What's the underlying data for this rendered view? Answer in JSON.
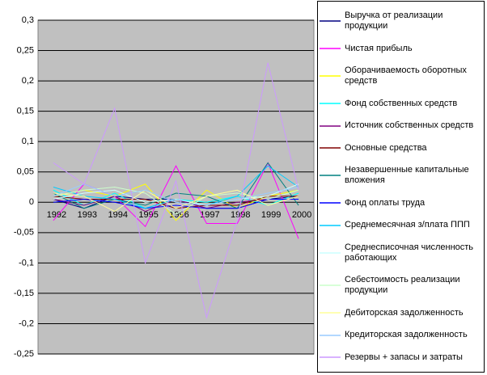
{
  "chart_data": {
    "type": "line",
    "categories": [
      "1992",
      "1993",
      "1994",
      "1995",
      "1996",
      "1997",
      "1998",
      "1999",
      "2000"
    ],
    "ylim": [
      -0.25,
      0.3
    ],
    "yticks": [
      {
        "value": -0.25,
        "label": "-0,25"
      },
      {
        "value": -0.2,
        "label": "-0,2"
      },
      {
        "value": -0.15,
        "label": "-0,15"
      },
      {
        "value": -0.1,
        "label": "-0,1"
      },
      {
        "value": -0.05,
        "label": "-0,05"
      },
      0,
      {
        "value": 0.05,
        "label": "0,05"
      },
      {
        "value": 0.1,
        "label": "0,1"
      },
      {
        "value": 0.15,
        "label": "0,15"
      },
      {
        "value": 0.2,
        "label": "0,2"
      },
      {
        "value": 0.25,
        "label": "0,25"
      },
      {
        "value": 0.3,
        "label": "0,3"
      }
    ],
    "grid": true,
    "legend": "right",
    "series": [
      {
        "name": "Выручка от реализации продукции",
        "color": "#000080",
        "values": [
          0.005,
          -0.01,
          0.01,
          0.005,
          0.005,
          -0.01,
          -0.01,
          0.005,
          0.01
        ]
      },
      {
        "name": "Чистая прибыль",
        "color": "#ff00ff",
        "values": [
          -0.03,
          0.03,
          0.01,
          -0.04,
          0.06,
          -0.035,
          -0.035,
          0.065,
          -0.06
        ]
      },
      {
        "name": "Оборачиваемость оборотных средств",
        "color": "#ffff00",
        "values": [
          0.01,
          0.02,
          0.01,
          0.03,
          -0.03,
          0.02,
          -0.01,
          0.01,
          0.02
        ]
      },
      {
        "name": "Фонд собственных средств",
        "color": "#00ffff",
        "values": [
          0.02,
          -0.005,
          0.015,
          -0.01,
          0.005,
          0,
          0.01,
          -0.005,
          0.015
        ]
      },
      {
        "name": "Источник собственных средств",
        "color": "#800080",
        "values": [
          0.005,
          -0.005,
          0.01,
          -0.015,
          0.005,
          -0.01,
          0,
          0.005,
          0.005
        ]
      },
      {
        "name": "Основные средства",
        "color": "#800000",
        "values": [
          0.01,
          0.005,
          0.005,
          0.005,
          -0.01,
          -0.005,
          -0.005,
          0.01,
          0.01
        ]
      },
      {
        "name": "Незавершенные капитальные вложения",
        "color": "#008080",
        "values": [
          0.015,
          -0.01,
          0.005,
          -0.005,
          0.015,
          0.01,
          -0.01,
          0.065,
          -0.005
        ]
      },
      {
        "name": "Фонд оплаты труда",
        "color": "#0000ff",
        "values": [
          0,
          0.005,
          0,
          -0.01,
          -0.005,
          -0.01,
          -0.01,
          0.005,
          0.005
        ]
      },
      {
        "name": "Среднемесячная з/плата ППП",
        "color": "#00ccff",
        "values": [
          0.025,
          0.01,
          0.005,
          -0.01,
          0.005,
          -0.005,
          0.01,
          0.06,
          0.025
        ]
      },
      {
        "name": "Среднесписочная численность работающих",
        "color": "#ccffff",
        "values": [
          0.005,
          0.015,
          0.02,
          0,
          0.005,
          -0.005,
          0.005,
          0.01,
          0.03
        ]
      },
      {
        "name": "Себестоимость реализации продукции",
        "color": "#ccffcc",
        "values": [
          0.01,
          0.02,
          0.025,
          0.015,
          -0.02,
          0.01,
          0.015,
          0.005,
          0.02
        ]
      },
      {
        "name": "Дебиторская задолженность",
        "color": "#ffff99",
        "values": [
          0.015,
          0.01,
          -0.015,
          0.02,
          -0.01,
          0.01,
          0.02,
          -0.005,
          0.01
        ]
      },
      {
        "name": "Кредиторская задолженность",
        "color": "#99ccff",
        "values": [
          0.01,
          0.03,
          0.01,
          0.02,
          0,
          -0.005,
          0.005,
          0.015,
          0.025
        ]
      },
      {
        "name": "Резервы + запасы и затраты",
        "color": "#cc99ff",
        "values": [
          0.065,
          0.03,
          0.155,
          -0.1,
          0.035,
          -0.19,
          -0.03,
          0.23,
          0.02
        ]
      }
    ]
  }
}
